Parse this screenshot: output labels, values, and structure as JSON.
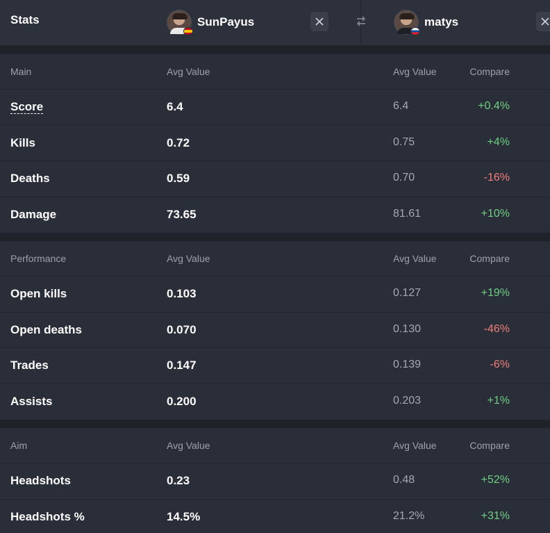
{
  "header": {
    "title": "Stats",
    "player1": {
      "name": "SunPayus",
      "flag": "spain-flag"
    },
    "player2": {
      "name": "matys",
      "flag": "slovakia-flag"
    }
  },
  "columns": {
    "avg": "Avg Value",
    "compare": "Compare"
  },
  "sections": [
    {
      "name": "Main",
      "rows": [
        {
          "stat": "Score",
          "p1": "6.4",
          "p2": "6.4",
          "compare": "+0.4%",
          "trend": "pos"
        },
        {
          "stat": "Kills",
          "p1": "0.72",
          "p2": "0.75",
          "compare": "+4%",
          "trend": "pos"
        },
        {
          "stat": "Deaths",
          "p1": "0.59",
          "p2": "0.70",
          "compare": "-16%",
          "trend": "neg"
        },
        {
          "stat": "Damage",
          "p1": "73.65",
          "p2": "81.61",
          "compare": "+10%",
          "trend": "pos"
        }
      ]
    },
    {
      "name": "Performance",
      "rows": [
        {
          "stat": "Open kills",
          "p1": "0.103",
          "p2": "0.127",
          "compare": "+19%",
          "trend": "pos"
        },
        {
          "stat": "Open deaths",
          "p1": "0.070",
          "p2": "0.130",
          "compare": "-46%",
          "trend": "neg"
        },
        {
          "stat": "Trades",
          "p1": "0.147",
          "p2": "0.139",
          "compare": "-6%",
          "trend": "neg"
        },
        {
          "stat": "Assists",
          "p1": "0.200",
          "p2": "0.203",
          "compare": "+1%",
          "trend": "pos"
        }
      ]
    },
    {
      "name": "Aim",
      "rows": [
        {
          "stat": "Headshots",
          "p1": "0.23",
          "p2": "0.48",
          "compare": "+52%",
          "trend": "pos"
        },
        {
          "stat": "Headshots %",
          "p1": "14.5%",
          "p2": "21.2%",
          "compare": "+31%",
          "trend": "pos"
        }
      ]
    }
  ],
  "colors": {
    "positive": "#6fcf83",
    "negative": "#ef7f7b",
    "background": "#2a2e38"
  }
}
